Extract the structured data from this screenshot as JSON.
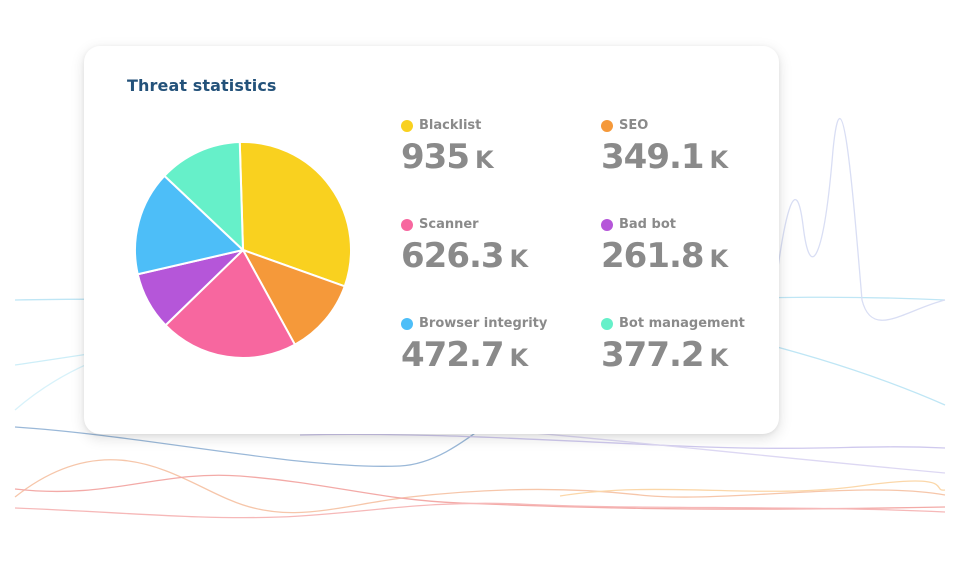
{
  "card": {
    "title": "Threat statistics"
  },
  "stats": [
    {
      "label": "Blacklist",
      "value": "935",
      "unit": "K",
      "color": "#f9d11f"
    },
    {
      "label": "SEO",
      "value": "349.1",
      "unit": "K",
      "color": "#f5993a"
    },
    {
      "label": "Scanner",
      "value": "626.3",
      "unit": "K",
      "color": "#f7679f"
    },
    {
      "label": "Bad bot",
      "value": "261.8",
      "unit": "K",
      "color": "#b556d9"
    },
    {
      "label": "Browser integrity",
      "value": "472.7",
      "unit": "K",
      "color": "#4dbef8"
    },
    {
      "label": "Bot management",
      "value": "377.2",
      "unit": "K",
      "color": "#66f0c9"
    }
  ],
  "chart_data": {
    "type": "pie",
    "title": "Threat statistics",
    "unit": "K",
    "categories": [
      "Blacklist",
      "SEO",
      "Scanner",
      "Bad bot",
      "Browser integrity",
      "Bot management"
    ],
    "values": [
      935,
      349.1,
      626.3,
      261.8,
      472.7,
      377.2
    ],
    "colors": [
      "#f9d11f",
      "#f5993a",
      "#f7679f",
      "#b556d9",
      "#4dbef8",
      "#66f0c9"
    ],
    "legend": "right"
  }
}
